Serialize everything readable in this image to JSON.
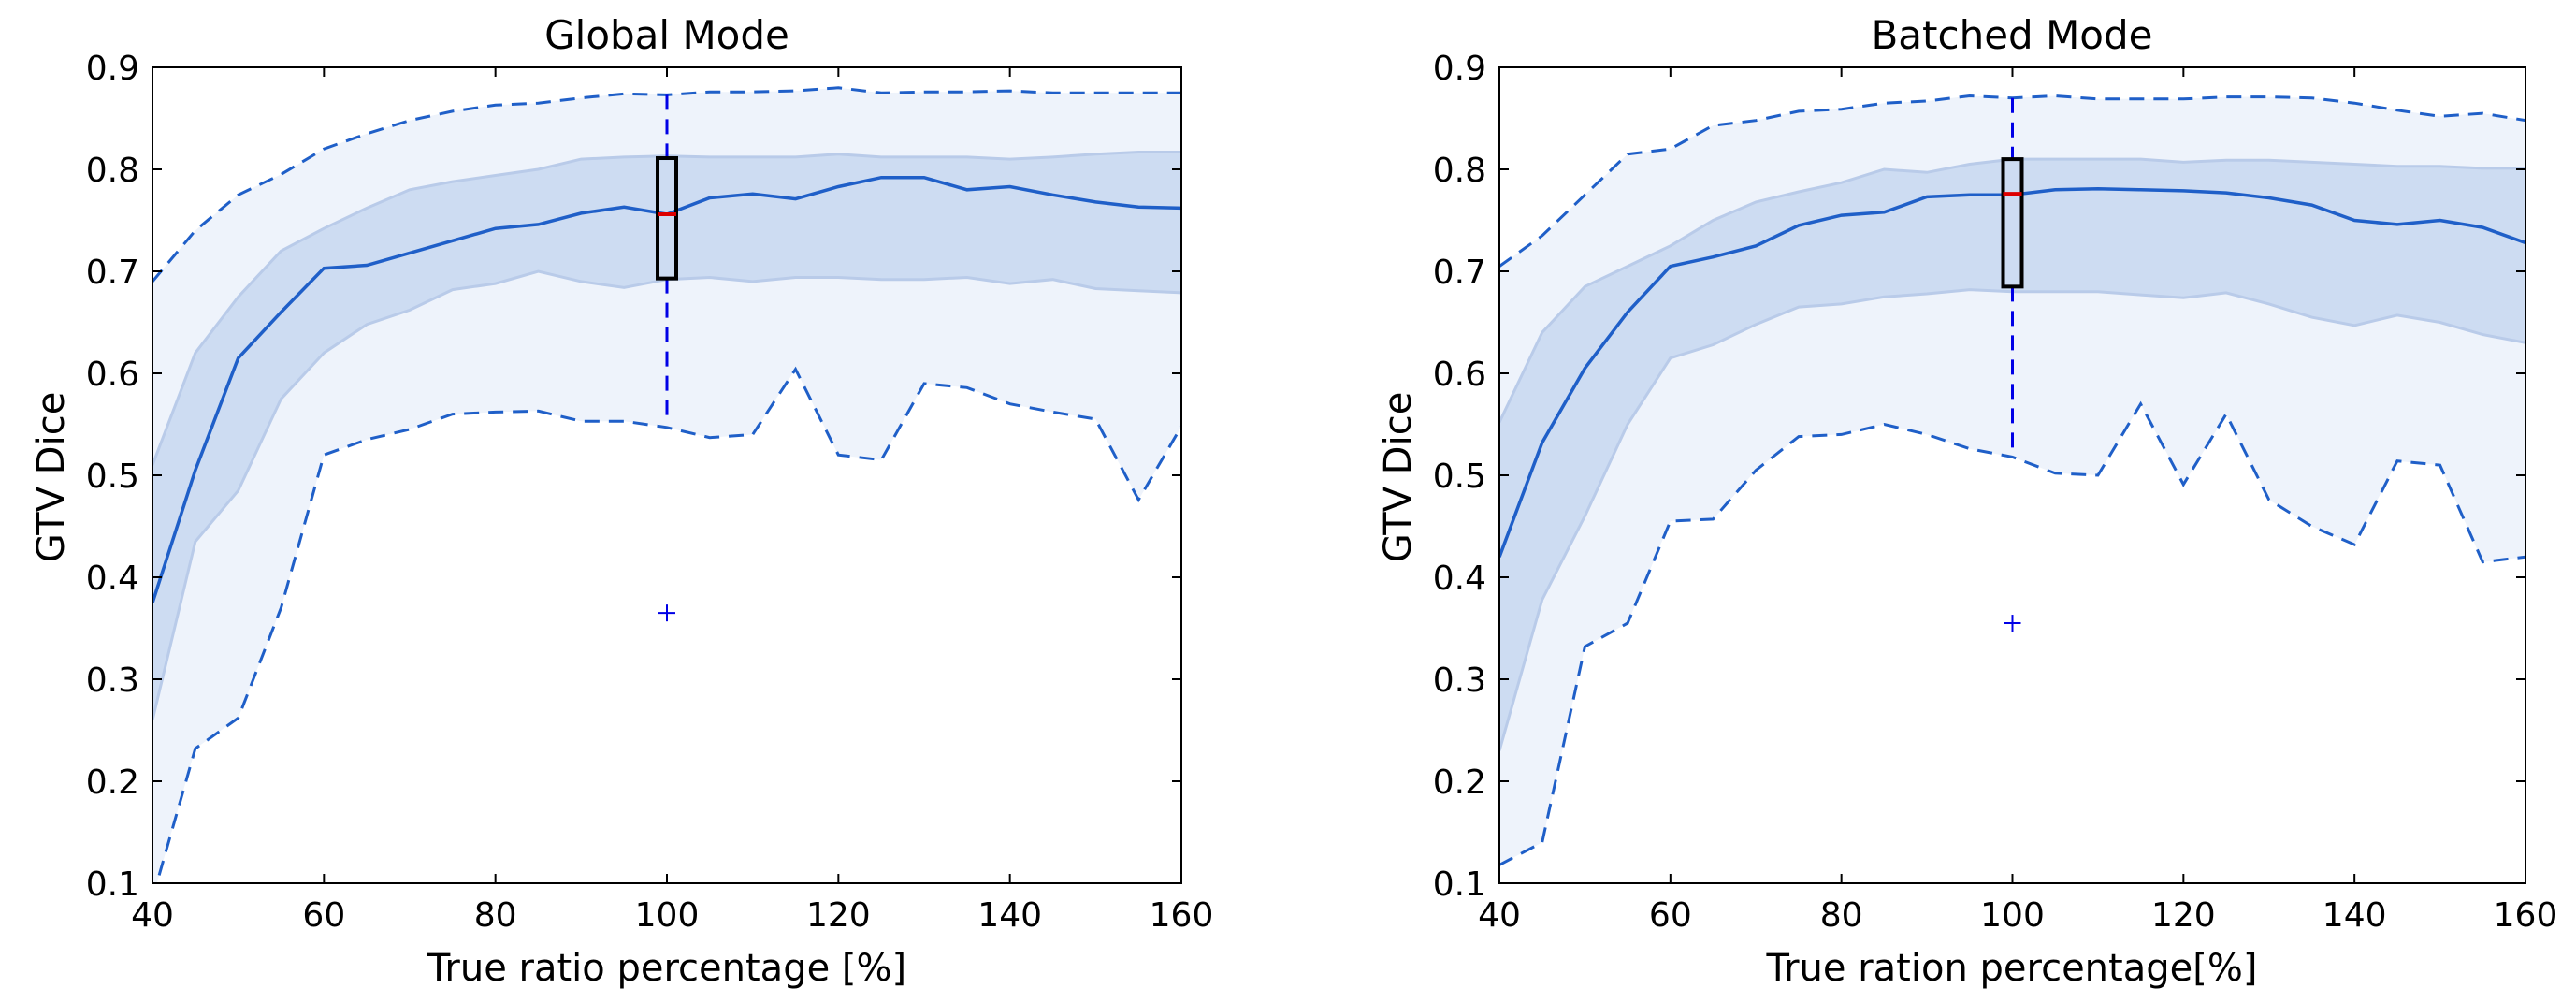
{
  "chart_data": [
    {
      "type": "line",
      "title": "Global Mode",
      "xlabel": "True ratio percentage [%]",
      "ylabel": "GTV Dice",
      "xlim": [
        40,
        160
      ],
      "ylim": [
        0.1,
        0.9
      ],
      "xticks": [
        40,
        60,
        80,
        100,
        120,
        140,
        160
      ],
      "yticks": [
        0.1,
        0.2,
        0.3,
        0.4,
        0.5,
        0.6,
        0.7,
        0.8,
        0.9
      ],
      "x": [
        40,
        45,
        50,
        55,
        60,
        65,
        70,
        75,
        80,
        85,
        90,
        95,
        100,
        105,
        110,
        115,
        120,
        125,
        130,
        135,
        140,
        145,
        150,
        155,
        160
      ],
      "series": [
        {
          "name": "max",
          "style": "dashed",
          "values": [
            0.69,
            0.74,
            0.775,
            0.795,
            0.82,
            0.835,
            0.848,
            0.857,
            0.863,
            0.865,
            0.87,
            0.874,
            0.873,
            0.876,
            0.876,
            0.877,
            0.88,
            0.875,
            0.876,
            0.876,
            0.877,
            0.875,
            0.875,
            0.875,
            0.875
          ]
        },
        {
          "name": "upper",
          "style": "band-edge",
          "values": [
            0.51,
            0.62,
            0.675,
            0.72,
            0.742,
            0.762,
            0.78,
            0.788,
            0.794,
            0.8,
            0.81,
            0.812,
            0.813,
            0.812,
            0.812,
            0.812,
            0.815,
            0.812,
            0.812,
            0.812,
            0.81,
            0.812,
            0.815,
            0.817,
            0.817
          ]
        },
        {
          "name": "median",
          "style": "solid",
          "values": [
            0.375,
            0.505,
            0.615,
            0.66,
            0.703,
            0.706,
            0.718,
            0.73,
            0.742,
            0.746,
            0.757,
            0.763,
            0.756,
            0.772,
            0.776,
            0.771,
            0.783,
            0.792,
            0.792,
            0.78,
            0.783,
            0.775,
            0.768,
            0.763,
            0.762
          ]
        },
        {
          "name": "lower",
          "style": "band-edge",
          "values": [
            0.26,
            0.435,
            0.485,
            0.575,
            0.62,
            0.648,
            0.662,
            0.682,
            0.688,
            0.7,
            0.69,
            0.684,
            0.692,
            0.694,
            0.69,
            0.694,
            0.694,
            0.692,
            0.692,
            0.694,
            0.688,
            0.692,
            0.683,
            0.681,
            0.679
          ]
        },
        {
          "name": "min",
          "style": "dashed",
          "values": [
            0.085,
            0.232,
            0.262,
            0.37,
            0.52,
            0.535,
            0.545,
            0.56,
            0.562,
            0.563,
            0.553,
            0.553,
            0.547,
            0.537,
            0.54,
            0.604,
            0.52,
            0.515,
            0.59,
            0.586,
            0.57,
            0.562,
            0.555,
            0.476,
            0.548
          ]
        }
      ],
      "boxplot": {
        "x": 100,
        "q1": 0.693,
        "median": 0.756,
        "q3": 0.811,
        "whisker_low": 0.553,
        "whisker_high": 0.873,
        "outlier": 0.365
      }
    },
    {
      "type": "line",
      "title": "Batched Mode",
      "xlabel": "True ration percentage[%]",
      "ylabel": "GTV Dice",
      "xlim": [
        40,
        160
      ],
      "ylim": [
        0.1,
        0.9
      ],
      "xticks": [
        40,
        60,
        80,
        100,
        120,
        140,
        160
      ],
      "yticks": [
        0.1,
        0.2,
        0.3,
        0.4,
        0.5,
        0.6,
        0.7,
        0.8,
        0.9
      ],
      "x": [
        40,
        45,
        50,
        55,
        60,
        65,
        70,
        75,
        80,
        85,
        90,
        95,
        100,
        105,
        110,
        115,
        120,
        125,
        130,
        135,
        140,
        145,
        150,
        155,
        160
      ],
      "series": [
        {
          "name": "max",
          "style": "dashed",
          "values": [
            0.705,
            0.735,
            0.775,
            0.815,
            0.82,
            0.843,
            0.848,
            0.857,
            0.859,
            0.865,
            0.867,
            0.872,
            0.87,
            0.872,
            0.869,
            0.869,
            0.869,
            0.871,
            0.871,
            0.87,
            0.865,
            0.858,
            0.852,
            0.855,
            0.848
          ]
        },
        {
          "name": "upper",
          "style": "band-edge",
          "values": [
            0.552,
            0.64,
            0.685,
            0.705,
            0.725,
            0.75,
            0.768,
            0.778,
            0.787,
            0.8,
            0.797,
            0.805,
            0.81,
            0.81,
            0.81,
            0.81,
            0.807,
            0.809,
            0.809,
            0.807,
            0.805,
            0.803,
            0.803,
            0.801,
            0.801
          ]
        },
        {
          "name": "median",
          "style": "solid",
          "values": [
            0.42,
            0.532,
            0.605,
            0.66,
            0.705,
            0.714,
            0.725,
            0.745,
            0.755,
            0.758,
            0.773,
            0.775,
            0.775,
            0.78,
            0.781,
            0.78,
            0.779,
            0.777,
            0.772,
            0.765,
            0.75,
            0.746,
            0.75,
            0.743,
            0.728
          ]
        },
        {
          "name": "lower",
          "style": "band-edge",
          "values": [
            0.23,
            0.378,
            0.46,
            0.55,
            0.615,
            0.628,
            0.648,
            0.665,
            0.668,
            0.675,
            0.678,
            0.682,
            0.68,
            0.68,
            0.68,
            0.677,
            0.674,
            0.679,
            0.668,
            0.655,
            0.647,
            0.657,
            0.65,
            0.638,
            0.63
          ]
        },
        {
          "name": "min",
          "style": "dashed",
          "values": [
            0.118,
            0.14,
            0.332,
            0.355,
            0.455,
            0.457,
            0.505,
            0.538,
            0.54,
            0.55,
            0.54,
            0.526,
            0.518,
            0.502,
            0.5,
            0.57,
            0.491,
            0.56,
            0.476,
            0.45,
            0.432,
            0.514,
            0.51,
            0.415,
            0.42
          ]
        }
      ],
      "boxplot": {
        "x": 100,
        "q1": 0.685,
        "median": 0.776,
        "q3": 0.81,
        "whisker_low": 0.518,
        "whisker_high": 0.87,
        "outlier": 0.355
      }
    }
  ],
  "colors": {
    "outer_band": "#eef3fb",
    "inner_band": "#cddcf2",
    "band_edge": "#b9cbe9",
    "line": "#1f5fc8",
    "dashed": "#1f5fc8",
    "whisker": "#0000e6",
    "box": "#000000",
    "median_mark": "#dd0000",
    "outlier": "#0000e6",
    "axes": "#000000"
  }
}
